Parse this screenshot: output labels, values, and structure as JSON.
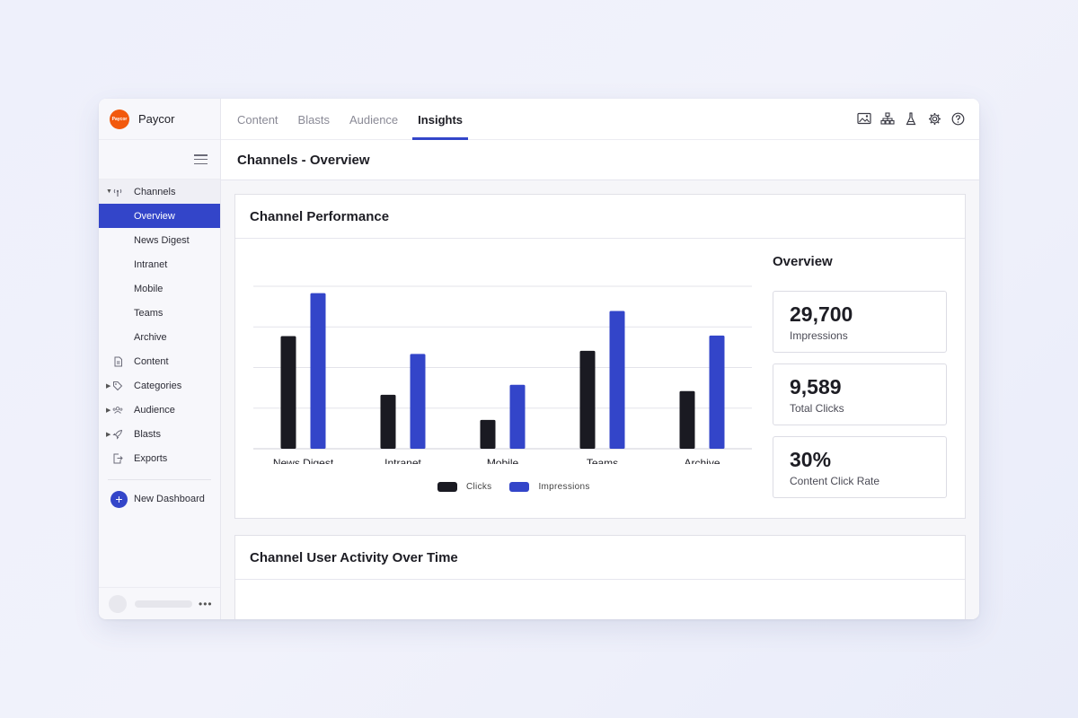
{
  "app": {
    "brand": "Paycor",
    "logo_text": "Paycor"
  },
  "sidebar": {
    "items": [
      {
        "label": "Channels",
        "icon": "antenna-icon",
        "caret": "down"
      },
      {
        "label": "Overview"
      },
      {
        "label": "News Digest"
      },
      {
        "label": "Intranet"
      },
      {
        "label": "Mobile"
      },
      {
        "label": "Teams"
      },
      {
        "label": "Archive"
      },
      {
        "label": "Content",
        "icon": "document-icon"
      },
      {
        "label": "Categories",
        "icon": "tag-icon",
        "caret": "right"
      },
      {
        "label": "Audience",
        "icon": "people-icon",
        "caret": "right"
      },
      {
        "label": "Blasts",
        "icon": "rocket-icon",
        "caret": "right"
      },
      {
        "label": "Exports",
        "icon": "export-icon"
      }
    ],
    "new_dashboard": "New Dashboard"
  },
  "tabs": [
    {
      "label": "Content"
    },
    {
      "label": "Blasts"
    },
    {
      "label": "Audience"
    },
    {
      "label": "Insights",
      "active": true
    }
  ],
  "top_icons": [
    "image-icon",
    "sitemap-icon",
    "flask-icon",
    "gear-icon",
    "help-icon"
  ],
  "page": {
    "title": "Channels - Overview"
  },
  "performance": {
    "title": "Channel Performance",
    "overview_title": "Overview",
    "stats": [
      {
        "value": "29,700",
        "label": "Impressions"
      },
      {
        "value": "9,589",
        "label": "Total Clicks"
      },
      {
        "value": "30%",
        "label": "Content Click Rate"
      }
    ]
  },
  "activity": {
    "title": "Channel User Activity Over Time"
  },
  "colors": {
    "accent": "#3345c9",
    "clicks": "#1a1a22",
    "impressions": "#3345c9",
    "brand": "#f2590d"
  },
  "chart_data": {
    "type": "bar",
    "categories": [
      "News Digest",
      "Intranet",
      "Mobile",
      "Teams",
      "Archive"
    ],
    "series": [
      {
        "name": "Clicks",
        "values": [
          2150,
          1030,
          550,
          1870,
          1100
        ]
      },
      {
        "name": "Impressions",
        "values": [
          2970,
          1810,
          1220,
          2630,
          2160
        ]
      }
    ],
    "ylim": [
      0,
      3100
    ],
    "grid": true,
    "legend_position": "bottom"
  }
}
